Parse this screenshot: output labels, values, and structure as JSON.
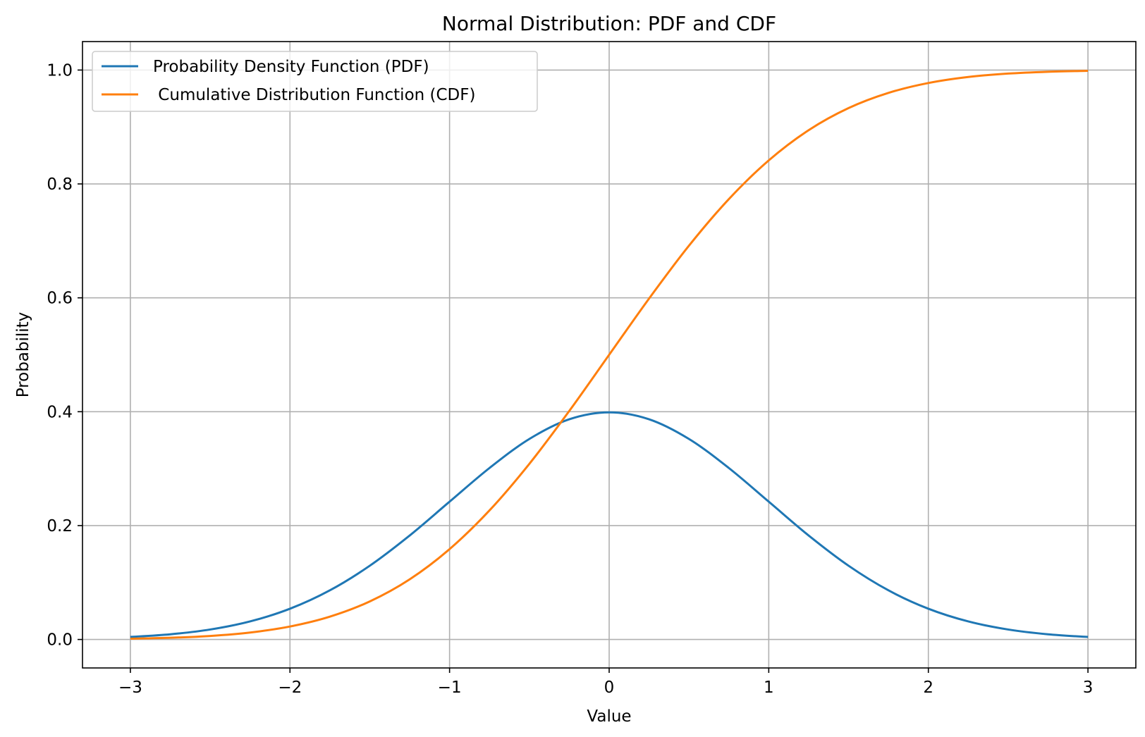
{
  "chart_data": {
    "type": "line",
    "title": "Normal Distribution: PDF and CDF",
    "xlabel": "Value",
    "ylabel": "Probability",
    "xlim": [
      -3.3,
      3.3
    ],
    "ylim": [
      -0.05,
      1.05
    ],
    "grid": true,
    "legend_position": "top-left",
    "x_ticks": [
      -3,
      -2,
      -1,
      0,
      1,
      2,
      3
    ],
    "x_tick_labels": [
      "−3",
      "−2",
      "−1",
      "0",
      "1",
      "2",
      "3"
    ],
    "y_ticks": [
      0.0,
      0.2,
      0.4,
      0.6,
      0.8,
      1.0
    ],
    "y_tick_labels": [
      "0.0",
      "0.2",
      "0.4",
      "0.6",
      "0.8",
      "1.0"
    ],
    "x": [
      -3.0,
      -2.75,
      -2.5,
      -2.25,
      -2.0,
      -1.75,
      -1.5,
      -1.25,
      -1.0,
      -0.75,
      -0.5,
      -0.25,
      0.0,
      0.25,
      0.5,
      0.75,
      1.0,
      1.25,
      1.5,
      1.75,
      2.0,
      2.25,
      2.5,
      2.75,
      3.0
    ],
    "series": [
      {
        "name": "Probability Density Function (PDF)",
        "color": "#1f77b4",
        "values": [
          0.0044,
          0.0091,
          0.0175,
          0.0317,
          0.054,
          0.0863,
          0.1295,
          0.1826,
          0.242,
          0.3011,
          0.3521,
          0.3867,
          0.3989,
          0.3867,
          0.3521,
          0.3011,
          0.242,
          0.1826,
          0.1295,
          0.0863,
          0.054,
          0.0317,
          0.0175,
          0.0091,
          0.0044
        ]
      },
      {
        "name": " Cumulative Distribution Function (CDF)",
        "color": "#ff7f0e",
        "values": [
          0.0013,
          0.003,
          0.0062,
          0.0122,
          0.0228,
          0.0401,
          0.0668,
          0.1056,
          0.1587,
          0.2266,
          0.3085,
          0.4013,
          0.5,
          0.5987,
          0.6915,
          0.7734,
          0.8413,
          0.8944,
          0.9332,
          0.9599,
          0.9772,
          0.9878,
          0.9938,
          0.997,
          0.9987
        ]
      }
    ]
  }
}
